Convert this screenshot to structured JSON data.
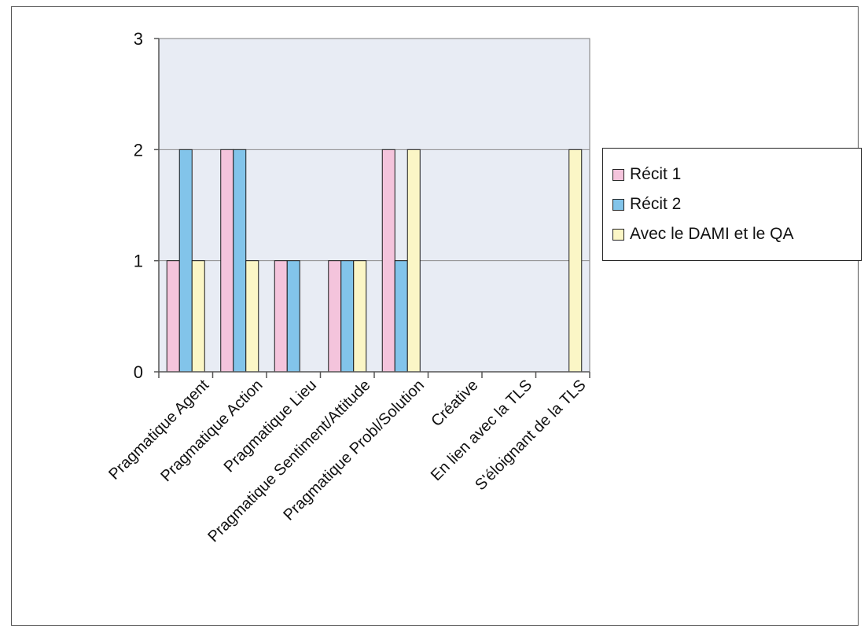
{
  "chart_data": {
    "type": "bar",
    "categories": [
      "Pragmatique Agent",
      "Pragmatique Action",
      "Pragmatique Lieu",
      "Pragmatique Sentiment/Attitude",
      "Pragmatique Probl/Solution",
      "Créative",
      "En lien avec la TLS",
      "S'éloignant de la TLS"
    ],
    "series": [
      {
        "name": "Récit 1",
        "values": [
          1,
          2,
          1,
          1,
          2,
          0,
          0,
          0
        ],
        "color": "#f4c4dc"
      },
      {
        "name": "Récit 2",
        "values": [
          2,
          2,
          1,
          1,
          1,
          0,
          0,
          0
        ],
        "color": "#82c4ea"
      },
      {
        "name": "Avec le DAMI et le QA",
        "values": [
          1,
          1,
          0,
          1,
          2,
          0,
          0,
          2
        ],
        "color": "#fbf6c6"
      }
    ],
    "ylim": [
      0,
      3
    ],
    "yticks": [
      0,
      1,
      2,
      3
    ],
    "grid": true,
    "legend_position": "right",
    "plot_background": "#e8ecf4"
  }
}
